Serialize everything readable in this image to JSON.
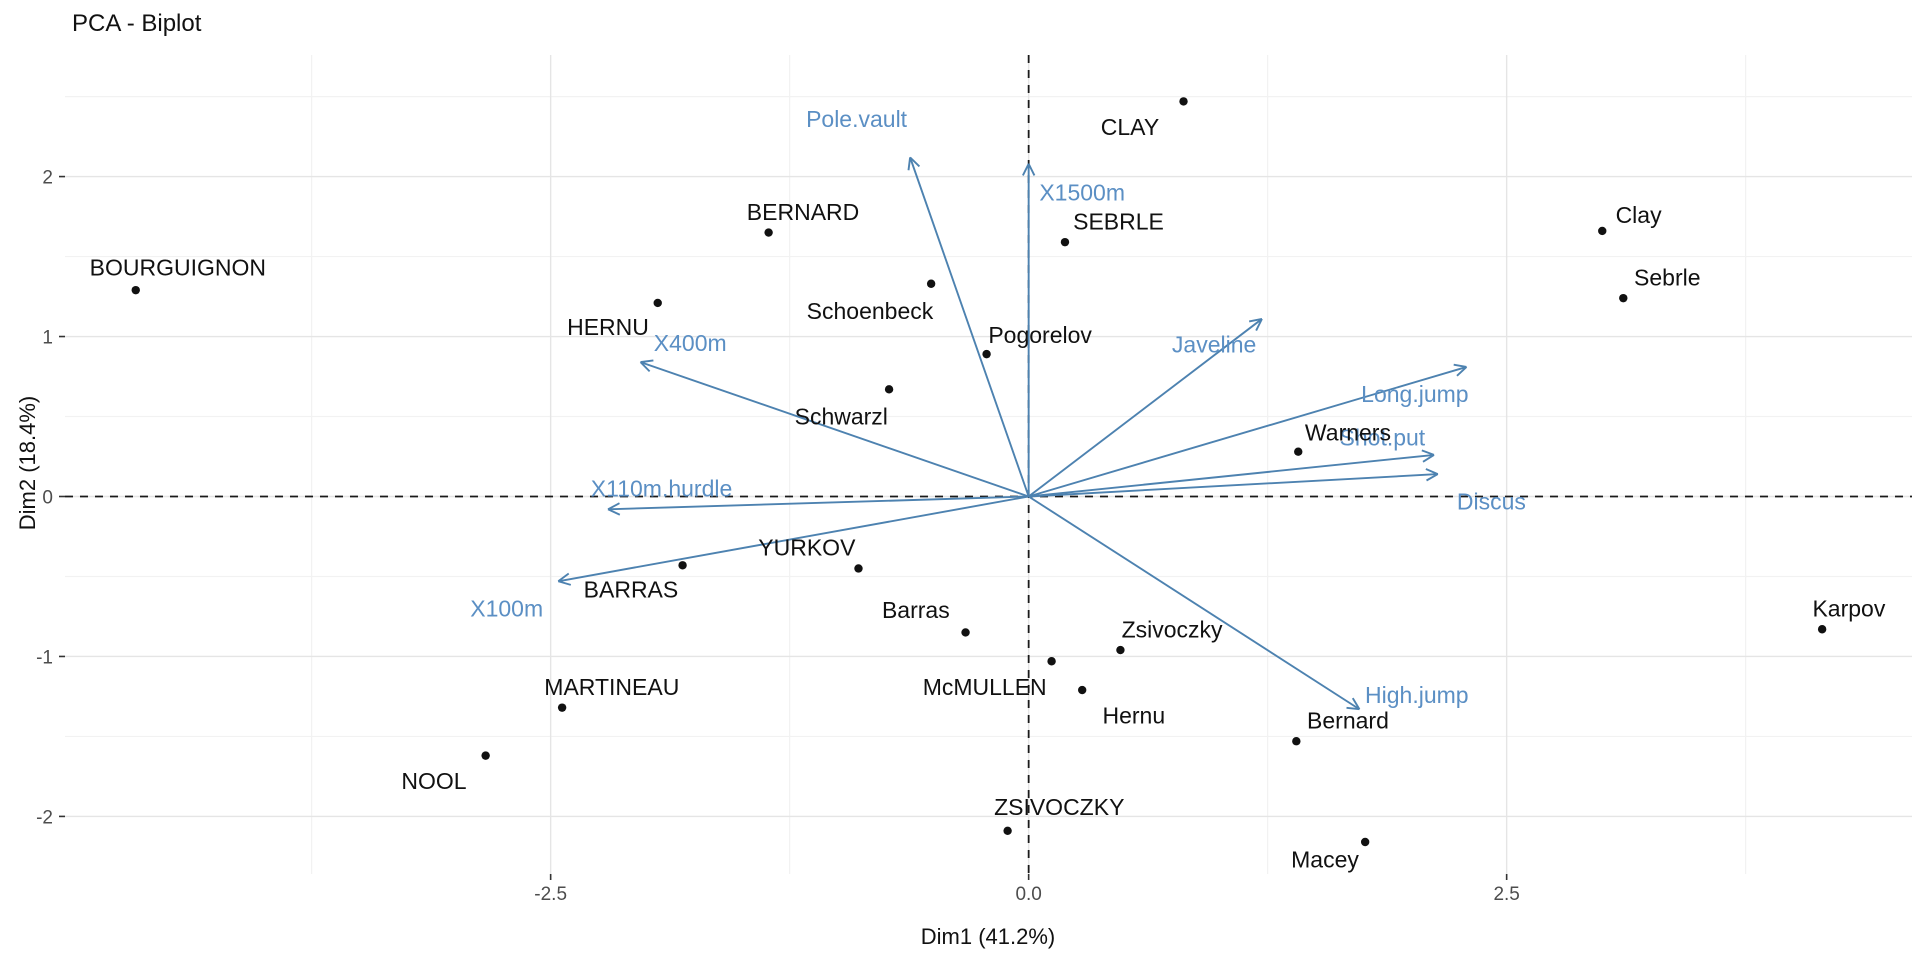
{
  "title": "PCA - Biplot",
  "chart_data": {
    "type": "scatter",
    "title": "PCA - Biplot",
    "xlabel": "Dim1 (41.2%)",
    "ylabel": "Dim2 (18.4%)",
    "xlim": [
      -5.04,
      4.62
    ],
    "ylim": [
      -2.36,
      2.76
    ],
    "grid": true,
    "legend": "none",
    "x_ticks": {
      "values": [
        -2.5,
        0.0,
        2.5
      ],
      "labels": [
        "-2.5",
        "0.0",
        "2.5"
      ]
    },
    "y_ticks": {
      "values": [
        -2,
        -1,
        0,
        1,
        2
      ],
      "labels": [
        "-2",
        "-1",
        "0",
        "1",
        "2"
      ]
    },
    "x_minor": [
      -3.75,
      -1.25,
      1.25,
      3.75
    ],
    "y_minor": [
      2.5,
      1.5,
      0.5,
      -0.5,
      -1.5
    ],
    "reference_lines": {
      "horizontal_y": 0,
      "vertical_x": 0,
      "style": "dashed",
      "color": "#1a1a1a"
    },
    "colors": {
      "individual_point": "#111111",
      "individual_label": "#111111",
      "variable_arrow": "#4d82b0",
      "variable_label": "#5b8fc4",
      "grid_major": "#e5e5e5",
      "grid_minor": "#f2f2f2",
      "tick_text": "#4d4d4d"
    },
    "individuals": [
      {
        "name": "BOURGUIGNON",
        "x": -4.67,
        "y": 1.29,
        "label_x": -4.45,
        "label_y": 1.43
      },
      {
        "name": "NOOL",
        "x": -2.84,
        "y": -1.62,
        "label_x": -3.11,
        "label_y": -1.78
      },
      {
        "name": "MARTINEAU",
        "x": -2.44,
        "y": -1.32,
        "label_x": -2.18,
        "label_y": -1.19
      },
      {
        "name": "HERNU",
        "x": -1.94,
        "y": 1.21,
        "label_x": -2.2,
        "label_y": 1.06
      },
      {
        "name": "BERNARD",
        "x": -1.36,
        "y": 1.65,
        "label_x": -1.18,
        "label_y": 1.78
      },
      {
        "name": "Schwarzl",
        "x": -0.73,
        "y": 0.67,
        "label_x": -0.98,
        "label_y": 0.5
      },
      {
        "name": "BARRAS",
        "x": -1.81,
        "y": -0.43,
        "label_x": -2.08,
        "label_y": -0.58
      },
      {
        "name": "YURKOV",
        "x": -0.89,
        "y": -0.45,
        "label_x": -1.16,
        "label_y": -0.32
      },
      {
        "name": "Schoenbeck",
        "x": -0.51,
        "y": 1.33,
        "label_x": -0.83,
        "label_y": 1.16
      },
      {
        "name": "Pogorelov",
        "x": -0.22,
        "y": 0.89,
        "label_x": 0.06,
        "label_y": 1.01
      },
      {
        "name": "SEBRLE",
        "x": 0.19,
        "y": 1.59,
        "label_x": 0.47,
        "label_y": 1.72
      },
      {
        "name": "CLAY",
        "x": 0.81,
        "y": 2.47,
        "label_x": 0.53,
        "label_y": 2.31
      },
      {
        "name": "Barras",
        "x": -0.33,
        "y": -0.85,
        "label_x": -0.59,
        "label_y": -0.71
      },
      {
        "name": "McMULLEN",
        "x": 0.12,
        "y": -1.03,
        "label_x": -0.23,
        "label_y": -1.19
      },
      {
        "name": "Zsivoczky",
        "x": 0.48,
        "y": -0.96,
        "label_x": 0.75,
        "label_y": -0.83
      },
      {
        "name": "Hernu",
        "x": 0.28,
        "y": -1.21,
        "label_x": 0.55,
        "label_y": -1.37
      },
      {
        "name": "ZSIVOCZKY",
        "x": -0.11,
        "y": -2.09,
        "label_x": 0.16,
        "label_y": -1.94
      },
      {
        "name": "Warners",
        "x": 1.41,
        "y": 0.28,
        "label_x": 1.67,
        "label_y": 0.4
      },
      {
        "name": "Bernard",
        "x": 1.4,
        "y": -1.53,
        "label_x": 1.67,
        "label_y": -1.4
      },
      {
        "name": "Macey",
        "x": 1.76,
        "y": -2.16,
        "label_x": 1.55,
        "label_y": -2.27
      },
      {
        "name": "Clay",
        "x": 3.0,
        "y": 1.66,
        "label_x": 3.19,
        "label_y": 1.76
      },
      {
        "name": "Sebrle",
        "x": 3.11,
        "y": 1.24,
        "label_x": 3.34,
        "label_y": 1.37
      },
      {
        "name": "Karpov",
        "x": 4.15,
        "y": -0.83,
        "label_x": 4.29,
        "label_y": -0.7
      }
    ],
    "variables": [
      {
        "name": "X100m",
        "x": -2.46,
        "y": -0.53,
        "label_x": -2.73,
        "label_y": -0.7
      },
      {
        "name": "X110m.hurdle",
        "x": -2.2,
        "y": -0.08,
        "label_x": -1.92,
        "label_y": 0.05
      },
      {
        "name": "X400m",
        "x": -2.03,
        "y": 0.84,
        "label_x": -1.77,
        "label_y": 0.96
      },
      {
        "name": "Pole.vault",
        "x": -0.62,
        "y": 2.12,
        "label_x": -0.9,
        "label_y": 2.36
      },
      {
        "name": "X1500m",
        "x": 0.0,
        "y": 2.08,
        "label_x": 0.28,
        "label_y": 1.9
      },
      {
        "name": "Javeline",
        "x": 1.22,
        "y": 1.11,
        "label_x": 0.97,
        "label_y": 0.95
      },
      {
        "name": "Long.jump",
        "x": 2.29,
        "y": 0.81,
        "label_x": 2.02,
        "label_y": 0.64
      },
      {
        "name": "Shot.put",
        "x": 2.12,
        "y": 0.26,
        "label_x": 1.85,
        "label_y": 0.37
      },
      {
        "name": "Discus",
        "x": 2.14,
        "y": 0.14,
        "label_x": 2.42,
        "label_y": -0.03
      },
      {
        "name": "High.jump",
        "x": 1.73,
        "y": -1.33,
        "label_x": 2.03,
        "label_y": -1.24
      }
    ]
  }
}
